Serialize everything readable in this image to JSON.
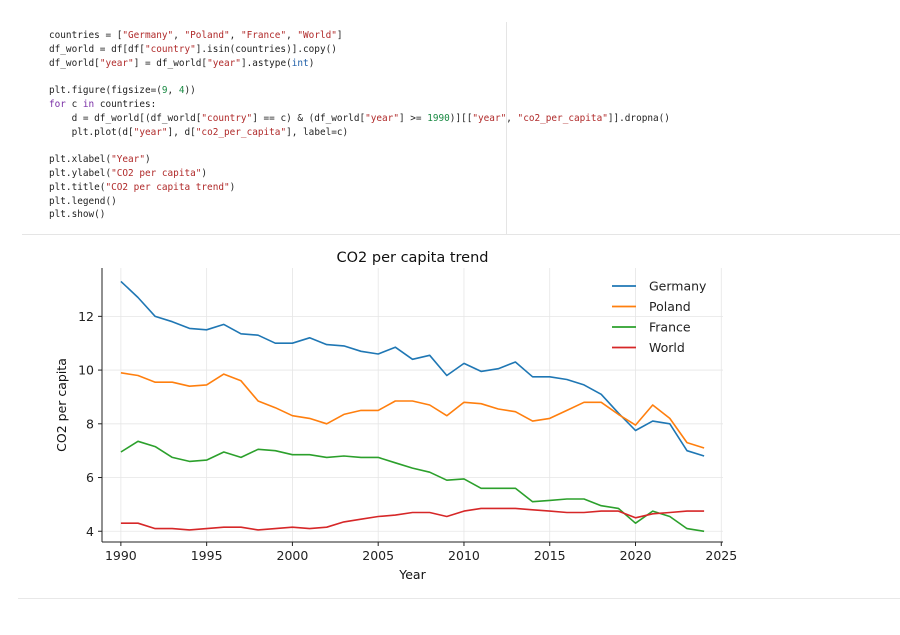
{
  "code": {
    "lines": [
      [
        {
          "t": "countries = ["
        },
        {
          "t": "\"Germany\"",
          "c": "s"
        },
        {
          "t": ", "
        },
        {
          "t": "\"Poland\"",
          "c": "s"
        },
        {
          "t": ", "
        },
        {
          "t": "\"France\"",
          "c": "s"
        },
        {
          "t": ", "
        },
        {
          "t": "\"World\"",
          "c": "s"
        },
        {
          "t": "]"
        }
      ],
      [
        {
          "t": "df_world = df[df["
        },
        {
          "t": "\"country\"",
          "c": "s"
        },
        {
          "t": "].isin(countries)].copy()"
        }
      ],
      [
        {
          "t": "df_world["
        },
        {
          "t": "\"year\"",
          "c": "s"
        },
        {
          "t": "] = df_world["
        },
        {
          "t": "\"year\"",
          "c": "s"
        },
        {
          "t": "].astype("
        },
        {
          "t": "int",
          "c": "b"
        },
        {
          "t": ")"
        }
      ],
      [
        {
          "t": ""
        }
      ],
      [
        {
          "t": "plt.figure(figsize=("
        },
        {
          "t": "9",
          "c": "n"
        },
        {
          "t": ", "
        },
        {
          "t": "4",
          "c": "n"
        },
        {
          "t": "))"
        }
      ],
      [
        {
          "t": "for",
          "c": "k"
        },
        {
          "t": " c "
        },
        {
          "t": "in",
          "c": "k"
        },
        {
          "t": " countries:"
        }
      ],
      [
        {
          "t": "    d = df_world[(df_world["
        },
        {
          "t": "\"country\"",
          "c": "s"
        },
        {
          "t": "] == c) & (df_world["
        },
        {
          "t": "\"year\"",
          "c": "s"
        },
        {
          "t": "] >= "
        },
        {
          "t": "1990",
          "c": "n"
        },
        {
          "t": ")][["
        },
        {
          "t": "\"year\"",
          "c": "s"
        },
        {
          "t": ", "
        },
        {
          "t": "\"co2_per_capita\"",
          "c": "s"
        },
        {
          "t": "]].dropna()"
        }
      ],
      [
        {
          "t": "    plt.plot(d["
        },
        {
          "t": "\"year\"",
          "c": "s"
        },
        {
          "t": "], d["
        },
        {
          "t": "\"co2_per_capita\"",
          "c": "s"
        },
        {
          "t": "], label=c)"
        }
      ],
      [
        {
          "t": ""
        }
      ],
      [
        {
          "t": "plt.xlabel("
        },
        {
          "t": "\"Year\"",
          "c": "s"
        },
        {
          "t": ")"
        }
      ],
      [
        {
          "t": "plt.ylabel("
        },
        {
          "t": "\"CO2 per capita\"",
          "c": "s"
        },
        {
          "t": ")"
        }
      ],
      [
        {
          "t": "plt.title("
        },
        {
          "t": "\"CO2 per capita trend\"",
          "c": "s"
        },
        {
          "t": ")"
        }
      ],
      [
        {
          "t": "plt.legend()"
        }
      ],
      [
        {
          "t": "plt.show()"
        }
      ]
    ]
  },
  "chart_data": {
    "type": "line",
    "title": "CO2 per capita trend",
    "xlabel": "Year",
    "ylabel": "CO2 per capita",
    "xlim": [
      1988.9,
      2025.1
    ],
    "ylim": [
      3.6,
      13.8
    ],
    "xticks": [
      1990,
      1995,
      2000,
      2005,
      2010,
      2015,
      2020,
      2025
    ],
    "yticks": [
      4,
      6,
      8,
      10,
      12
    ],
    "grid": true,
    "legend_position": "top-right",
    "x": [
      1990,
      1991,
      1992,
      1993,
      1994,
      1995,
      1996,
      1997,
      1998,
      1999,
      2000,
      2001,
      2002,
      2003,
      2004,
      2005,
      2006,
      2007,
      2008,
      2009,
      2010,
      2011,
      2012,
      2013,
      2014,
      2015,
      2016,
      2017,
      2018,
      2019,
      2020,
      2021,
      2022,
      2023,
      2024
    ],
    "series": [
      {
        "name": "Germany",
        "color": "#1f77b4",
        "values": [
          13.3,
          12.7,
          12.0,
          11.8,
          11.55,
          11.5,
          11.7,
          11.35,
          11.3,
          11.0,
          11.0,
          11.2,
          10.95,
          10.9,
          10.7,
          10.6,
          10.85,
          10.4,
          10.55,
          9.8,
          10.25,
          9.95,
          10.05,
          10.3,
          9.75,
          9.75,
          9.65,
          9.45,
          9.1,
          8.4,
          7.75,
          8.1,
          8.0,
          7.0,
          6.8
        ]
      },
      {
        "name": "Poland",
        "color": "#ff7f0e",
        "values": [
          9.9,
          9.8,
          9.55,
          9.55,
          9.4,
          9.45,
          9.85,
          9.6,
          8.85,
          8.6,
          8.3,
          8.2,
          8.0,
          8.35,
          8.5,
          8.5,
          8.85,
          8.85,
          8.7,
          8.3,
          8.8,
          8.75,
          8.55,
          8.45,
          8.1,
          8.2,
          8.5,
          8.8,
          8.8,
          8.35,
          7.95,
          8.7,
          8.2,
          7.3,
          7.1
        ]
      },
      {
        "name": "France",
        "color": "#2ca02c",
        "values": [
          6.95,
          7.35,
          7.15,
          6.75,
          6.6,
          6.65,
          6.95,
          6.75,
          7.05,
          7.0,
          6.85,
          6.85,
          6.75,
          6.8,
          6.75,
          6.75,
          6.55,
          6.35,
          6.2,
          5.9,
          5.95,
          5.6,
          5.6,
          5.6,
          5.1,
          5.15,
          5.2,
          5.2,
          4.95,
          4.85,
          4.3,
          4.75,
          4.55,
          4.1,
          4.0
        ]
      },
      {
        "name": "World",
        "color": "#d62728",
        "values": [
          4.3,
          4.3,
          4.1,
          4.1,
          4.05,
          4.1,
          4.15,
          4.15,
          4.05,
          4.1,
          4.15,
          4.1,
          4.15,
          4.35,
          4.45,
          4.55,
          4.6,
          4.7,
          4.7,
          4.55,
          4.75,
          4.85,
          4.85,
          4.85,
          4.8,
          4.75,
          4.7,
          4.7,
          4.75,
          4.75,
          4.5,
          4.65,
          4.7,
          4.75,
          4.75
        ]
      }
    ]
  }
}
